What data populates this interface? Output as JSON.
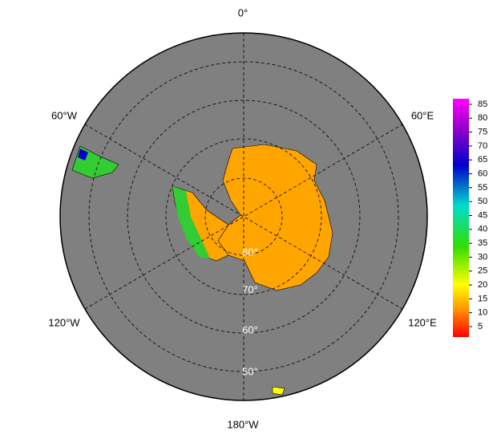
{
  "map": {
    "longitude_labels": [
      "0°",
      "60°E",
      "120°E",
      "180°W",
      "120°W",
      "60°W"
    ],
    "latitude_labels": [
      "80°",
      "70°",
      "60°",
      "50°"
    ]
  },
  "colorbar": {
    "ticks": [
      5,
      10,
      15,
      20,
      25,
      30,
      35,
      40,
      45,
      50,
      55,
      60,
      65,
      70,
      75,
      80,
      85
    ]
  }
}
